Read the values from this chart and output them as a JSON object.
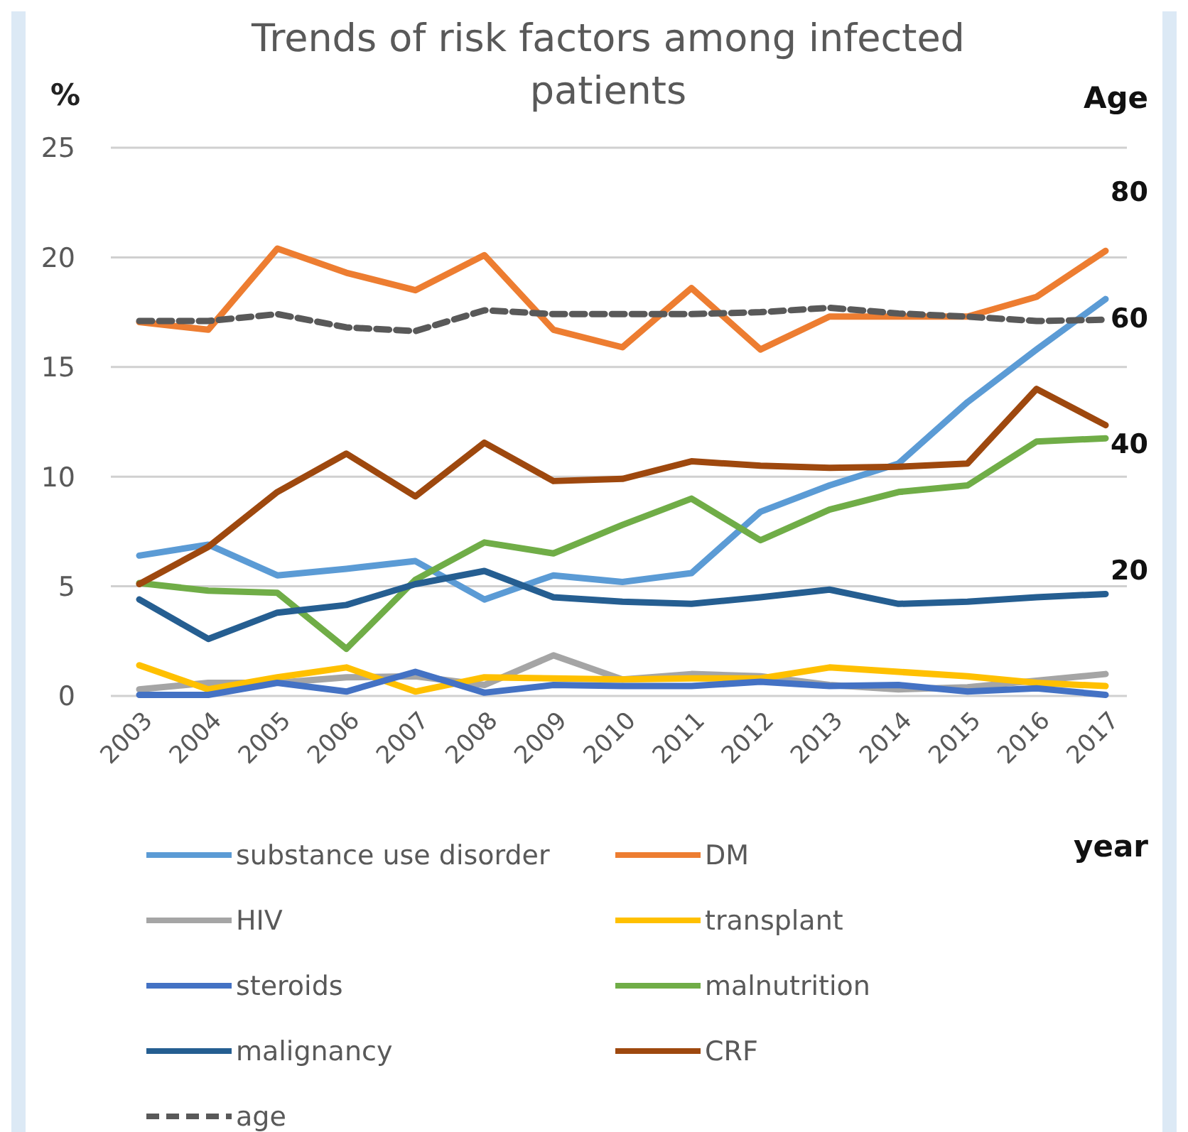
{
  "chart_data": {
    "type": "line",
    "title": "Trends of risk factors among infected patients",
    "xlabel": "year",
    "ylabel": "%",
    "y2label": "Age",
    "categories": [
      "2003",
      "2004",
      "2005",
      "2006",
      "2007",
      "2008",
      "2009",
      "2010",
      "2011",
      "2012",
      "2013",
      "2014",
      "2015",
      "2016",
      "2017"
    ],
    "ylim": [
      0,
      25
    ],
    "yticks": [
      0,
      5,
      10,
      15,
      20,
      25
    ],
    "y2lim": [
      0,
      87
    ],
    "y2ticks": [
      20,
      40,
      60,
      80
    ],
    "grid": "y",
    "legend": "bottom",
    "marker": "none",
    "series": [
      {
        "name": "substance use disorder",
        "color": "#5b9bd5",
        "values": [
          6.4,
          6.9,
          5.5,
          5.8,
          6.15,
          4.4,
          5.5,
          5.2,
          5.6,
          8.4,
          9.6,
          10.6,
          13.4,
          15.8,
          18.1
        ]
      },
      {
        "name": "DM",
        "color": "#ed7d31",
        "values": [
          17.05,
          16.7,
          20.4,
          19.3,
          18.5,
          20.1,
          16.7,
          15.9,
          18.6,
          15.8,
          17.3,
          17.3,
          17.3,
          18.2,
          20.3
        ]
      },
      {
        "name": "HIV",
        "color": "#a5a5a5",
        "values": [
          0.3,
          0.6,
          0.6,
          0.85,
          0.9,
          0.5,
          1.85,
          0.75,
          1.0,
          0.9,
          0.5,
          0.3,
          0.4,
          0.7,
          1.0
        ]
      },
      {
        "name": "transplant",
        "color": "#ffc000",
        "values": [
          1.4,
          0.3,
          0.85,
          1.3,
          0.2,
          0.85,
          0.8,
          0.75,
          0.8,
          0.8,
          1.3,
          1.1,
          0.9,
          0.6,
          0.45
        ]
      },
      {
        "name": "steroids",
        "color": "#4472c4",
        "values": [
          0.05,
          0.05,
          0.6,
          0.2,
          1.1,
          0.15,
          0.5,
          0.45,
          0.45,
          0.65,
          0.45,
          0.5,
          0.2,
          0.35,
          0.05
        ]
      },
      {
        "name": "malnutrition",
        "color": "#70ad47",
        "values": [
          5.15,
          4.8,
          4.7,
          2.15,
          5.3,
          7.0,
          6.5,
          7.8,
          9.0,
          7.1,
          8.5,
          9.3,
          9.6,
          11.6,
          11.75
        ]
      },
      {
        "name": "malignancy",
        "color": "#255e91",
        "values": [
          4.4,
          2.6,
          3.8,
          4.15,
          5.1,
          5.7,
          4.5,
          4.3,
          4.2,
          4.5,
          4.85,
          4.2,
          4.3,
          4.5,
          4.65
        ]
      },
      {
        "name": "CRF",
        "color": "#9e480e",
        "values": [
          5.1,
          6.8,
          9.3,
          11.05,
          9.1,
          11.55,
          9.8,
          9.9,
          10.7,
          10.5,
          10.4,
          10.45,
          10.6,
          14.0,
          12.35
        ]
      },
      {
        "name": "age",
        "color": "#595959",
        "axis": "y2",
        "line_style": "dashed",
        "values": [
          59.5,
          59.5,
          60.6,
          58.5,
          57.9,
          61.2,
          60.6,
          60.6,
          60.6,
          60.9,
          61.6,
          60.7,
          60.2,
          59.5,
          59.7
        ]
      }
    ]
  }
}
